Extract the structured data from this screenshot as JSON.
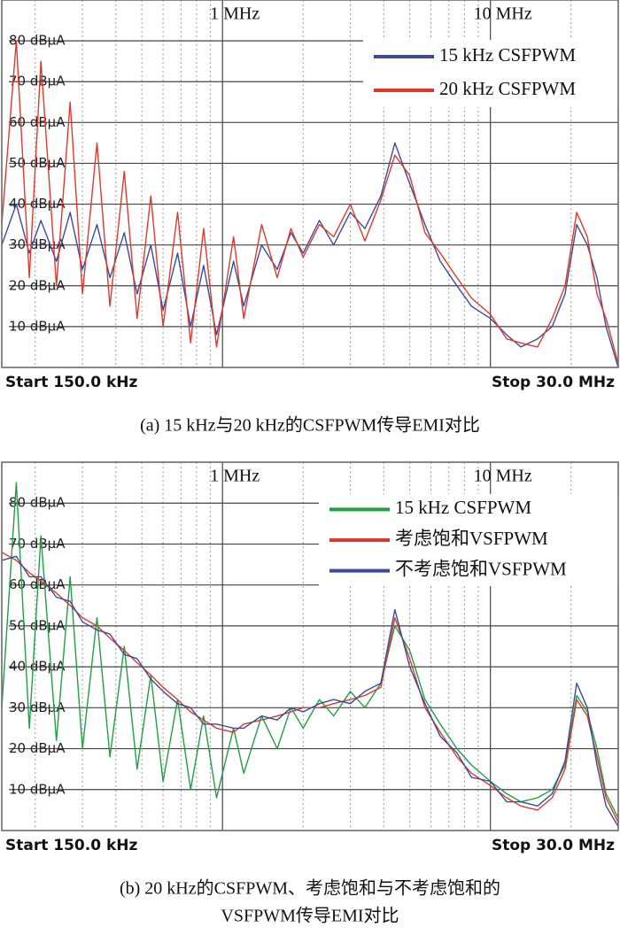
{
  "chart_data": [
    {
      "type": "line",
      "xscale": "log",
      "caption": [
        "(a) 15 kHz与20 kHz的CSFPWM传导EMI对比"
      ],
      "start_label": "Start 150.0 kHz",
      "stop_label": "Stop 30.0 MHz",
      "xlim": [
        150000,
        30000000
      ],
      "ylim": [
        0,
        90
      ],
      "xticks": [
        {
          "value": 1000000,
          "label": "1 MHz"
        },
        {
          "value": 10000000,
          "label": "10 MHz"
        }
      ],
      "minor_xticks": [
        200000,
        300000,
        400000,
        500000,
        600000,
        700000,
        800000,
        900000,
        2000000,
        3000000,
        4000000,
        5000000,
        6000000,
        7000000,
        8000000,
        9000000,
        20000000
      ],
      "yticks": [
        {
          "value": 10,
          "label": "10 dBµA"
        },
        {
          "value": 20,
          "label": "20 dBµA"
        },
        {
          "value": 30,
          "label": "30 dBµA"
        },
        {
          "value": 40,
          "label": "40 dBµA"
        },
        {
          "value": 50,
          "label": "50 dBµA"
        },
        {
          "value": 60,
          "label": "60 dBµA"
        },
        {
          "value": 70,
          "label": "70 dBµA"
        },
        {
          "value": 80,
          "label": "80 dBµA"
        }
      ],
      "x": [
        150000,
        170000,
        190000,
        210000,
        240000,
        270000,
        300000,
        340000,
        380000,
        430000,
        480000,
        540000,
        600000,
        680000,
        760000,
        850000,
        950000,
        1100000,
        1200000,
        1400000,
        1600000,
        1800000,
        2000000,
        2300000,
        2600000,
        3000000,
        3400000,
        3900000,
        4400000,
        5000000,
        5700000,
        6500000,
        7500000,
        8500000,
        10000000,
        11500000,
        13000000,
        15000000,
        17000000,
        19000000,
        21000000,
        23000000,
        25000000,
        27000000,
        30000000
      ],
      "series": [
        {
          "name": "15 kHz CSFPWM",
          "color": "#3b4b9c",
          "values": [
            30,
            40,
            28,
            36,
            26,
            38,
            24,
            35,
            22,
            33,
            18,
            30,
            14,
            28,
            10,
            25,
            8,
            26,
            15,
            30,
            24,
            33,
            28,
            36,
            30,
            38,
            34,
            42,
            55,
            45,
            35,
            26,
            20,
            15,
            12,
            8,
            5,
            7,
            10,
            18,
            35,
            30,
            22,
            10,
            0
          ]
        },
        {
          "name": "20 kHz CSFPWM",
          "color": "#e0392b",
          "values": [
            35,
            80,
            22,
            75,
            20,
            65,
            18,
            55,
            15,
            48,
            12,
            42,
            10,
            38,
            6,
            34,
            5,
            32,
            12,
            35,
            22,
            34,
            27,
            35,
            32,
            40,
            31,
            41,
            52,
            47,
            33,
            28,
            22,
            17,
            13,
            7,
            6,
            5,
            12,
            20,
            38,
            32,
            18,
            12,
            1
          ]
        }
      ]
    },
    {
      "type": "line",
      "xscale": "log",
      "caption": [
        "(b) 20 kHz的CSFPWM、考虑饱和与不考虑饱和的",
        "VSFPWM传导EMI对比"
      ],
      "start_label": "Start 150.0 kHz",
      "stop_label": "Stop 30.0 MHz",
      "xlim": [
        150000,
        30000000
      ],
      "ylim": [
        0,
        90
      ],
      "xticks": [
        {
          "value": 1000000,
          "label": "1 MHz"
        },
        {
          "value": 10000000,
          "label": "10 MHz"
        }
      ],
      "minor_xticks": [
        200000,
        300000,
        400000,
        500000,
        600000,
        700000,
        800000,
        900000,
        2000000,
        3000000,
        4000000,
        5000000,
        6000000,
        7000000,
        8000000,
        9000000,
        20000000
      ],
      "yticks": [
        {
          "value": 10,
          "label": "10 dBµA"
        },
        {
          "value": 20,
          "label": "20 dBµA"
        },
        {
          "value": 30,
          "label": "30 dBµA"
        },
        {
          "value": 40,
          "label": "40 dBµA"
        },
        {
          "value": 50,
          "label": "50 dBµA"
        },
        {
          "value": 60,
          "label": "60 dBµA"
        },
        {
          "value": 70,
          "label": "70 dBµA"
        },
        {
          "value": 80,
          "label": "80 dBµA"
        }
      ],
      "x": [
        150000,
        170000,
        190000,
        210000,
        240000,
        270000,
        300000,
        340000,
        380000,
        430000,
        480000,
        540000,
        600000,
        680000,
        760000,
        850000,
        950000,
        1100000,
        1200000,
        1400000,
        1600000,
        1800000,
        2000000,
        2300000,
        2600000,
        3000000,
        3400000,
        3900000,
        4400000,
        5000000,
        5700000,
        6500000,
        7500000,
        8500000,
        10000000,
        11500000,
        13000000,
        15000000,
        17000000,
        19000000,
        21000000,
        23000000,
        25000000,
        27000000,
        30000000
      ],
      "series": [
        {
          "name": "15 kHz CSFPWM",
          "color": "#1ea043",
          "values": [
            30,
            85,
            25,
            72,
            22,
            62,
            20,
            52,
            18,
            45,
            15,
            38,
            12,
            32,
            10,
            28,
            8,
            25,
            14,
            28,
            20,
            30,
            25,
            32,
            28,
            34,
            30,
            36,
            50,
            44,
            32,
            26,
            20,
            16,
            12,
            9,
            7,
            8,
            10,
            16,
            33,
            29,
            20,
            9,
            3
          ]
        },
        {
          "name": "考虑饱和VSFPWM",
          "color": "#e0392b",
          "values": [
            68,
            66,
            63,
            61,
            58,
            55,
            52,
            50,
            47,
            44,
            41,
            38,
            35,
            32,
            29,
            27,
            25,
            24,
            26,
            27,
            28,
            29,
            30,
            30,
            31,
            32,
            33,
            35,
            52,
            42,
            30,
            24,
            18,
            14,
            11,
            8,
            6,
            5,
            8,
            15,
            32,
            28,
            18,
            8,
            2
          ]
        },
        {
          "name": "不考虑饱和VSFPWM",
          "color": "#3b4b9c",
          "values": [
            66,
            67,
            62,
            62,
            57,
            56,
            51,
            49,
            48,
            43,
            42,
            37,
            34,
            31,
            30,
            26,
            26,
            25,
            25,
            28,
            27,
            30,
            29,
            31,
            32,
            31,
            34,
            36,
            54,
            40,
            31,
            23,
            19,
            13,
            12,
            7,
            7,
            6,
            9,
            17,
            36,
            30,
            16,
            6,
            1
          ]
        }
      ]
    }
  ]
}
